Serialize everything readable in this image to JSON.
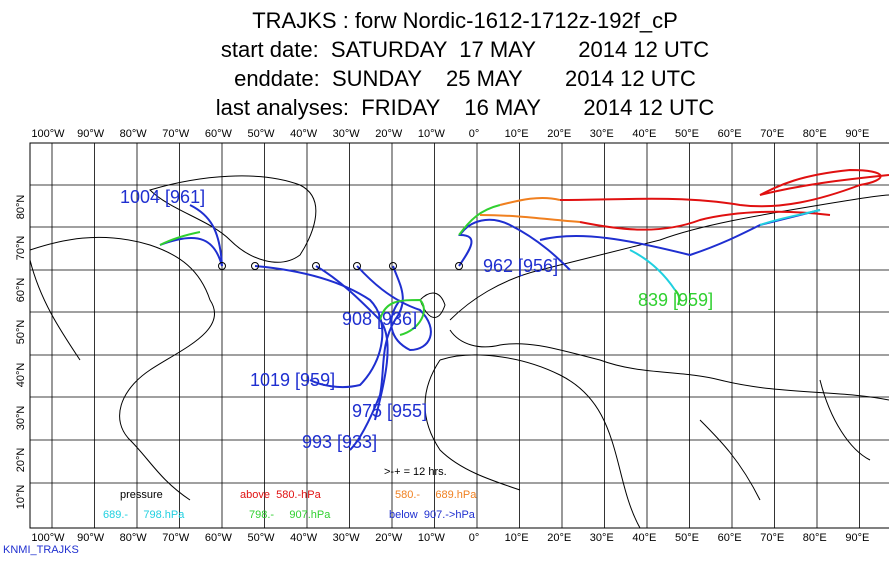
{
  "header": {
    "lines": [
      "TRAJKS : forw Nordic-1612-1712z-192f_cP",
      "start date:  SATURDAY  17 MAY       2014 12 UTC",
      "enddate:  SUNDAY    25 MAY       2014 12 UTC",
      "last analyses:  FRIDAY    16 MAY       2014 12 UTC"
    ]
  },
  "map": {
    "lon_labels": [
      "100°W",
      "90°W",
      "80°W",
      "70°W",
      "60°W",
      "50°W",
      "40°W",
      "30°W",
      "20°W",
      "10°W",
      "0°",
      "10°E",
      "20°E",
      "30°E",
      "40°E",
      "50°E",
      "60°E",
      "70°E",
      "80°E",
      "90°E"
    ],
    "lat_labels": [
      "80°N",
      "70°N",
      "60°N",
      "50°N",
      "40°N",
      "30°N",
      "20°N",
      "10°N"
    ],
    "trajectory_labels": [
      "1004 [961]",
      "962 [956]",
      "839 [959]",
      "908 [936]",
      "1019 [959]",
      "975 [955]",
      "993 [933]"
    ]
  },
  "legend": {
    "title": "pressure",
    "time_step": ">-+ = 12 hrs.",
    "classes": [
      "above  580.-hPa",
      "580.-     689.hPa",
      "689.-     798.hPa",
      "798.-     907.hPa",
      "below  907.->hPa"
    ]
  },
  "footer": "KNMI_TRAJKS"
}
